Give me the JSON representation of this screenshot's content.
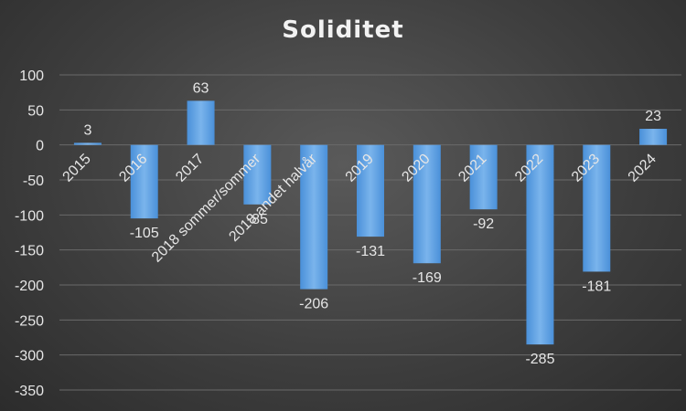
{
  "chart_data": {
    "type": "bar",
    "title": "Soliditet",
    "categories": [
      "2015",
      "2016",
      "2017",
      "2018 sommer/sommer",
      "2018 andet halvår",
      "2019",
      "2020",
      "2021",
      "2022",
      "2023",
      "2024"
    ],
    "values": [
      3,
      -105,
      63,
      -85,
      -206,
      -131,
      -169,
      -92,
      -285,
      -181,
      23
    ],
    "ylim": [
      -350,
      100
    ],
    "yticks": [
      100,
      50,
      0,
      -50,
      -100,
      -150,
      -200,
      -250,
      -300,
      -350
    ],
    "grid": true,
    "bar_color": "#4a90d9",
    "bar_color_light": "#7ab4ec"
  }
}
